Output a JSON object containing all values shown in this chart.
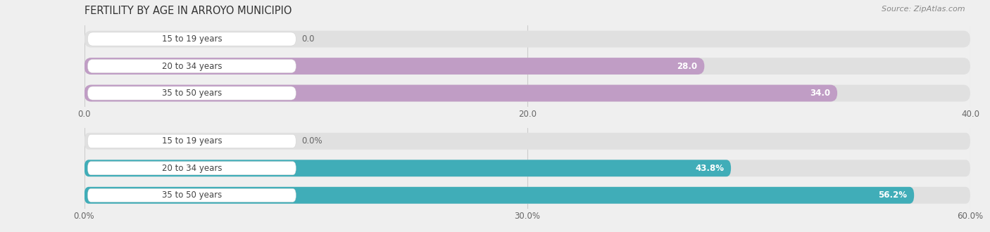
{
  "title": "FERTILITY BY AGE IN ARROYO MUNICIPIO",
  "source": "Source: ZipAtlas.com",
  "top_chart": {
    "categories": [
      "15 to 19 years",
      "20 to 34 years",
      "35 to 50 years"
    ],
    "values": [
      0.0,
      28.0,
      34.0
    ],
    "bar_color": "#c09dc5",
    "label_color_inside": "#ffffff",
    "label_color_outside": "#666666",
    "xlim": [
      0,
      40
    ],
    "xticks": [
      0.0,
      20.0,
      40.0
    ],
    "is_percent": false
  },
  "bottom_chart": {
    "categories": [
      "15 to 19 years",
      "20 to 34 years",
      "35 to 50 years"
    ],
    "values": [
      0.0,
      43.8,
      56.2
    ],
    "bar_color": "#40adb8",
    "label_color_inside": "#ffffff",
    "label_color_outside": "#666666",
    "xlim": [
      0,
      60
    ],
    "xticks": [
      0.0,
      30.0,
      60.0
    ],
    "is_percent": true
  },
  "bar_height": 0.62,
  "bg_color": "#efefef",
  "bar_bg_color": "#e0e0e0",
  "label_bg_color": "#ffffff",
  "title_fontsize": 10.5,
  "source_fontsize": 8,
  "tick_fontsize": 8.5,
  "cat_fontsize": 8.5
}
